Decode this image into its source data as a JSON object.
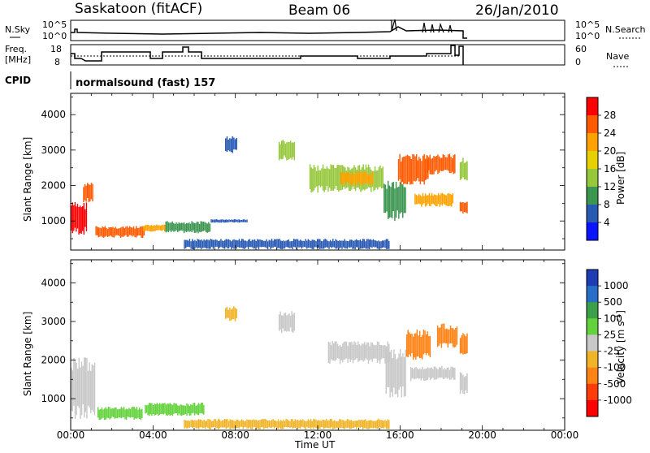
{
  "header": {
    "station": "Saskatoon (fitACF)",
    "beam": "Beam 06",
    "date": "26/Jan/2010"
  },
  "panels": {
    "nsky_label": "N.Sky",
    "nsky_ticks": [
      "10^5",
      "10^0"
    ],
    "nsearch_label": "N.Search",
    "nsearch_ticks": [
      "10^5",
      "10^0"
    ],
    "freq_label_1": "Freq.",
    "freq_label_2": "[MHz]",
    "freq_ticks": [
      "18",
      "8"
    ],
    "nave_label": "Nave",
    "nave_ticks": [
      "60",
      "0"
    ],
    "cpid_label": "CPID",
    "cpid_value": "normalsound (fast) 157"
  },
  "colorbars": {
    "power": {
      "title": "Power [dB]",
      "labels": [
        "28",
        "24",
        "20",
        "16",
        "12",
        "8",
        "4"
      ],
      "colors": [
        "#ff0000",
        "#ff5a00",
        "#ffa200",
        "#e8d000",
        "#96c83c",
        "#3c9650",
        "#285ab4",
        "#0a14ff"
      ]
    },
    "velocity": {
      "title_main": "Velocity [m s",
      "title_sup": "-1",
      "title_end": "]",
      "labels": [
        "1000",
        "500",
        "100",
        "25",
        "-25",
        "-100",
        "-500",
        "-1000"
      ],
      "colors": [
        "#1e3cb4",
        "#286ec8",
        "#3ca04b",
        "#64d23c",
        "#c8c8c8",
        "#f0b428",
        "#ff8214",
        "#ff3c0a",
        "#ff0000"
      ]
    }
  },
  "chart_data": [
    {
      "type": "heatmap",
      "title": "Power",
      "ylabel": "Slant Range [km]",
      "xlabel": "Time UT",
      "ylim": [
        180,
        4600
      ],
      "xlim": [
        0,
        24
      ],
      "y_ticks": [
        "1000",
        "2000",
        "3000",
        "4000"
      ],
      "x_ticks": [
        "00:00",
        "04:00",
        "08:00",
        "12:00",
        "16:00",
        "20:00",
        "00:00"
      ],
      "regions": [
        {
          "t0": 0.0,
          "t1": 0.8,
          "r0": 600,
          "r1": 1550,
          "color": "#ff0000"
        },
        {
          "t0": 0.6,
          "t1": 1.1,
          "r0": 1500,
          "r1": 2100,
          "color": "#ff5a00"
        },
        {
          "t0": 1.2,
          "t1": 3.6,
          "r0": 520,
          "r1": 860,
          "color": "#ff5a00"
        },
        {
          "t0": 3.5,
          "t1": 4.6,
          "r0": 700,
          "r1": 900,
          "color": "#ffa200"
        },
        {
          "t0": 4.6,
          "t1": 6.8,
          "r0": 650,
          "r1": 1000,
          "color": "#3c9650"
        },
        {
          "t0": 6.8,
          "t1": 8.6,
          "r0": 950,
          "r1": 1050,
          "color": "#285ab4"
        },
        {
          "t0": 7.5,
          "t1": 8.1,
          "r0": 2900,
          "r1": 3400,
          "color": "#285ab4"
        },
        {
          "t0": 10.1,
          "t1": 10.9,
          "r0": 2700,
          "r1": 3300,
          "color": "#96c83c"
        },
        {
          "t0": 11.6,
          "t1": 15.2,
          "r0": 1800,
          "r1": 2600,
          "color": "#96c83c"
        },
        {
          "t0": 13.1,
          "t1": 14.7,
          "r0": 2000,
          "r1": 2400,
          "color": "#ffa200"
        },
        {
          "t0": 15.2,
          "t1": 16.3,
          "r0": 1000,
          "r1": 2200,
          "color": "#3c9650"
        },
        {
          "t0": 15.9,
          "t1": 17.4,
          "r0": 2000,
          "r1": 2900,
          "color": "#ff5a00"
        },
        {
          "t0": 16.7,
          "t1": 18.6,
          "r0": 1400,
          "r1": 1800,
          "color": "#ffa200"
        },
        {
          "t0": 17.3,
          "t1": 18.7,
          "r0": 2300,
          "r1": 2900,
          "color": "#ff5a00"
        },
        {
          "t0": 18.9,
          "t1": 19.3,
          "r0": 1200,
          "r1": 1600,
          "color": "#ff5a00"
        },
        {
          "t0": 18.9,
          "t1": 19.3,
          "r0": 2100,
          "r1": 2800,
          "color": "#96c83c"
        },
        {
          "t0": 5.5,
          "t1": 15.5,
          "r0": 200,
          "r1": 500,
          "color": "#285ab4"
        }
      ]
    },
    {
      "type": "heatmap",
      "title": "Velocity",
      "ylabel": "Slant Range [km]",
      "xlabel": "Time UT",
      "ylim": [
        180,
        4600
      ],
      "xlim": [
        0,
        24
      ],
      "y_ticks": [
        "1000",
        "2000",
        "3000",
        "4000"
      ],
      "x_ticks": [
        "00:00",
        "04:00",
        "08:00",
        "12:00",
        "16:00",
        "20:00",
        "00:00"
      ],
      "regions": [
        {
          "t0": 0.0,
          "t1": 1.2,
          "r0": 450,
          "r1": 2100,
          "color": "#c8c8c8"
        },
        {
          "t0": 1.3,
          "t1": 3.5,
          "r0": 450,
          "r1": 800,
          "color": "#64d23c"
        },
        {
          "t0": 3.6,
          "t1": 6.5,
          "r0": 550,
          "r1": 900,
          "color": "#64d23c"
        },
        {
          "t0": 7.5,
          "t1": 8.1,
          "r0": 3000,
          "r1": 3400,
          "color": "#f0b428"
        },
        {
          "t0": 10.1,
          "t1": 10.9,
          "r0": 2700,
          "r1": 3300,
          "color": "#c8c8c8"
        },
        {
          "t0": 12.5,
          "t1": 15.5,
          "r0": 1900,
          "r1": 2500,
          "color": "#c8c8c8"
        },
        {
          "t0": 15.3,
          "t1": 16.3,
          "r0": 1000,
          "r1": 2300,
          "color": "#c8c8c8"
        },
        {
          "t0": 16.3,
          "t1": 17.5,
          "r0": 2000,
          "r1": 2800,
          "color": "#ff8214"
        },
        {
          "t0": 16.5,
          "t1": 18.7,
          "r0": 1450,
          "r1": 1850,
          "color": "#c8c8c8"
        },
        {
          "t0": 17.8,
          "t1": 18.8,
          "r0": 2300,
          "r1": 2950,
          "color": "#ff8214"
        },
        {
          "t0": 18.9,
          "t1": 19.3,
          "r0": 1100,
          "r1": 1700,
          "color": "#c8c8c8"
        },
        {
          "t0": 18.9,
          "t1": 19.3,
          "r0": 2100,
          "r1": 2700,
          "color": "#ff8214"
        },
        {
          "t0": 5.5,
          "t1": 15.5,
          "r0": 200,
          "r1": 480,
          "color": "#f0b428"
        }
      ]
    }
  ]
}
